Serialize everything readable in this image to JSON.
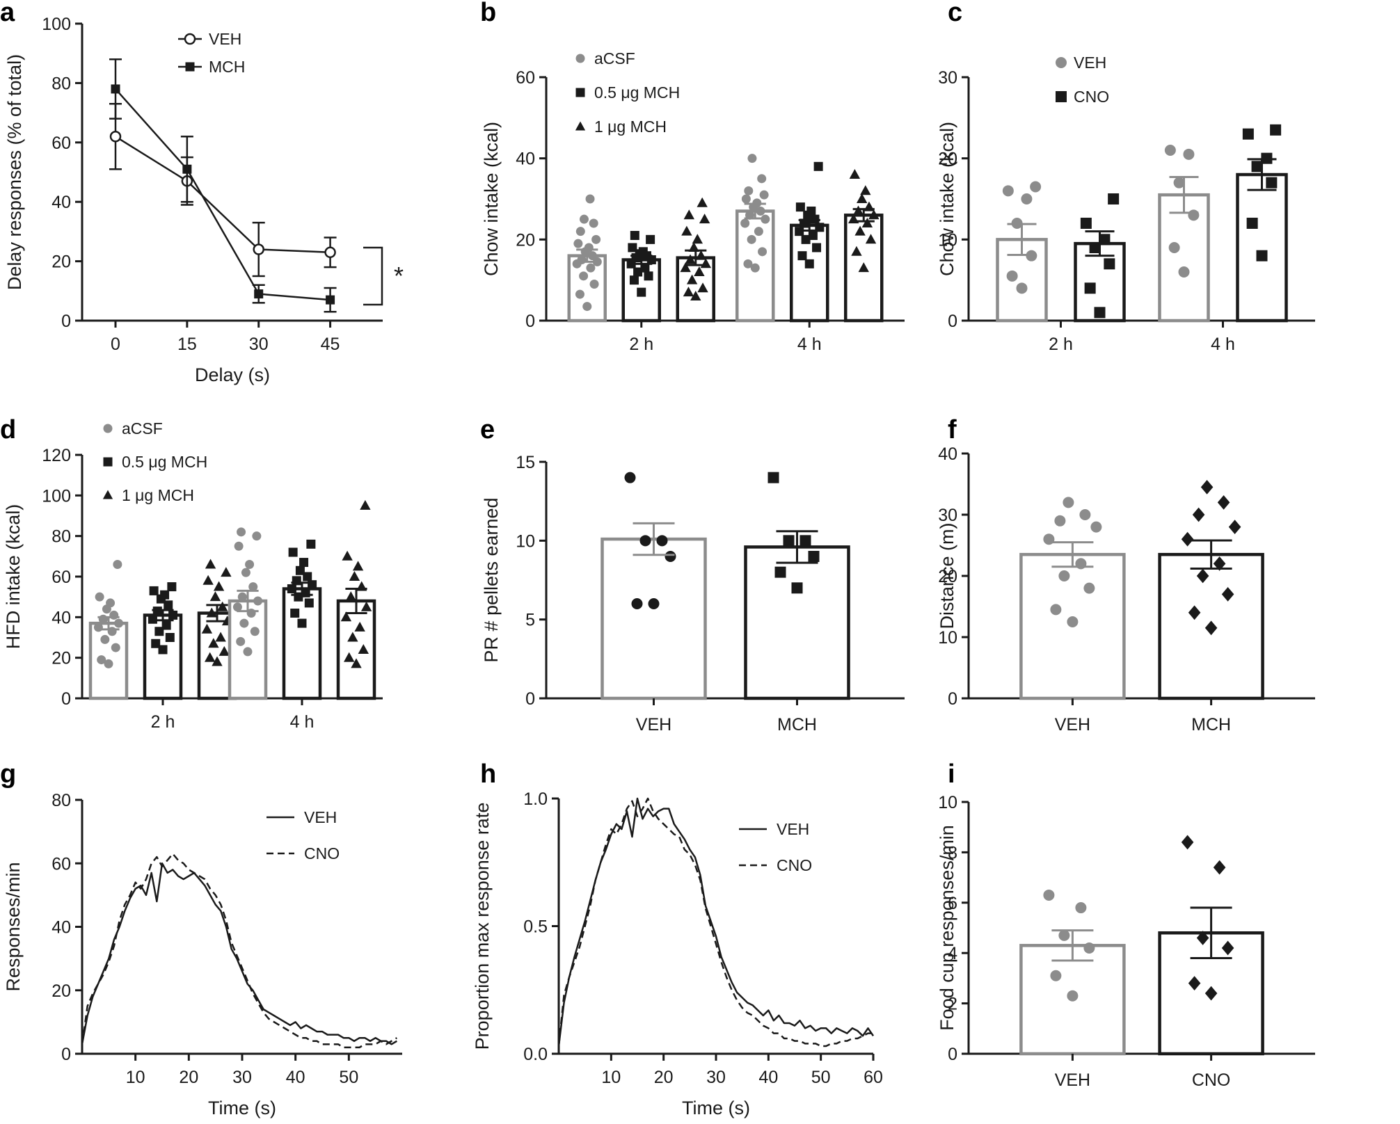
{
  "colors": {
    "grey": "#8c8c8c",
    "black": "#1a1a1a",
    "white": "#ffffff"
  },
  "chart_data": [
    {
      "panel": "a",
      "type": "line",
      "xlabel": "Delay (s)",
      "ylabel": "Delay responses (% of total)",
      "x": [
        0,
        15,
        30,
        45
      ],
      "xticks": [
        "0",
        "15",
        "30",
        "45"
      ],
      "ylim": [
        0,
        100
      ],
      "yticks": [
        "0",
        "20",
        "40",
        "60",
        "80",
        "100"
      ],
      "series": [
        {
          "name": "VEH",
          "values": [
            62,
            47,
            24,
            23
          ],
          "sem": [
            11,
            8,
            9,
            5
          ],
          "marker": "open-circle"
        },
        {
          "name": "MCH",
          "values": [
            78,
            51,
            9,
            7
          ],
          "sem": [
            10,
            11,
            3,
            4
          ],
          "marker": "square"
        }
      ],
      "annotation": "*"
    },
    {
      "panel": "b",
      "type": "bar",
      "ylabel": "Chow intake (kcal)",
      "categories": [
        "2 h",
        "4 h"
      ],
      "ylim": [
        0,
        60
      ],
      "yticks": [
        "0",
        "20",
        "40",
        "60"
      ],
      "series": [
        {
          "name": "aCSF",
          "marker": "circle",
          "color": "grey",
          "values": [
            16,
            27
          ],
          "sem": [
            1.5,
            1.8
          ],
          "points": [
            [
              3.5,
              6.5,
              9,
              11,
              13,
              14,
              14.5,
              15,
              16,
              17,
              18,
              19,
              20,
              22,
              24,
              25,
              30
            ],
            [
              13,
              14,
              17,
              20,
              22,
              24,
              25,
              26,
              27,
              28,
              29,
              30,
              31,
              32,
              35,
              40
            ]
          ]
        },
        {
          "name": "0.5 μg MCH",
          "marker": "square",
          "color": "black",
          "values": [
            15,
            23.5
          ],
          "sem": [
            1.0,
            1.3
          ],
          "points": [
            [
              7,
              10,
              11,
              12,
              13,
              14,
              15,
              15.5,
              16,
              16.5,
              17,
              18,
              20,
              21
            ],
            [
              14,
              16,
              18,
              20,
              21,
              22,
              23,
              24,
              25,
              26,
              27,
              28,
              38
            ]
          ]
        },
        {
          "name": "1 μg MCH",
          "marker": "triangle",
          "color": "black",
          "values": [
            15.5,
            26
          ],
          "sem": [
            1.8,
            1.5
          ],
          "points": [
            [
              6,
              7,
              8,
              10,
              12,
              13,
              14,
              15,
              16,
              18,
              20,
              22,
              25,
              26,
              29
            ],
            [
              13,
              17,
              20,
              22,
              24,
              25,
              26,
              27,
              28,
              30,
              32,
              36
            ]
          ]
        }
      ]
    },
    {
      "panel": "c",
      "type": "bar",
      "ylabel": "Chow intake (kcal)",
      "categories": [
        "2 h",
        "4 h"
      ],
      "ylim": [
        0,
        30
      ],
      "yticks": [
        "0",
        "10",
        "20",
        "30"
      ],
      "series": [
        {
          "name": "VEH",
          "marker": "circle",
          "color": "grey",
          "values": [
            10,
            15.5
          ],
          "sem": [
            1.9,
            2.2
          ],
          "points": [
            [
              4,
              5.5,
              8,
              12,
              15,
              16,
              16.5
            ],
            [
              6,
              9,
              13,
              17,
              20.5,
              21
            ]
          ]
        },
        {
          "name": "CNO",
          "marker": "square",
          "color": "black",
          "values": [
            9.5,
            18
          ],
          "sem": [
            1.5,
            1.9
          ],
          "points": [
            [
              1,
              4,
              7,
              9,
              10,
              12,
              15
            ],
            [
              8,
              12,
              17,
              19,
              20,
              23,
              23.5
            ]
          ]
        }
      ]
    },
    {
      "panel": "d",
      "type": "bar",
      "ylabel": "HFD intake (kcal)",
      "categories": [
        "2 h",
        "4 h"
      ],
      "ylim": [
        0,
        120
      ],
      "yticks": [
        "0",
        "20",
        "40",
        "60",
        "80",
        "100",
        "120"
      ],
      "series": [
        {
          "name": "aCSF",
          "marker": "circle",
          "color": "grey",
          "values": [
            37,
            48
          ],
          "sem": [
            3,
            5
          ],
          "points": [
            [
              17,
              19,
              25,
              29,
              33,
              35,
              37,
              39,
              41,
              44,
              47,
              50,
              66
            ],
            [
              23,
              28,
              33,
              37,
              42,
              45,
              48,
              50,
              55,
              62,
              66,
              75,
              80,
              82
            ]
          ]
        },
        {
          "name": "0.5 μg MCH",
          "marker": "square",
          "color": "black",
          "values": [
            41,
            54
          ],
          "sem": [
            2.5,
            3
          ],
          "points": [
            [
              24,
              27,
              30,
              33,
              36,
              39,
              41,
              43,
              46,
              49,
              51,
              53,
              55
            ],
            [
              37,
              42,
              47,
              50,
              52,
              54,
              56,
              58,
              60,
              63,
              67,
              72,
              76
            ]
          ]
        },
        {
          "name": "1 μg MCH",
          "marker": "triangle",
          "color": "black",
          "values": [
            42,
            48
          ],
          "sem": [
            4,
            6
          ],
          "points": [
            [
              18,
              20,
              23,
              27,
              30,
              34,
              38,
              42,
              45,
              50,
              55,
              58,
              62,
              66
            ],
            [
              17,
              20,
              24,
              30,
              35,
              40,
              45,
              50,
              55,
              60,
              65,
              70,
              95
            ]
          ]
        }
      ]
    },
    {
      "panel": "e",
      "type": "bar",
      "ylabel": "PR # pellets earned",
      "categories": [
        "VEH",
        "MCH"
      ],
      "ylim": [
        0,
        15
      ],
      "yticks": [
        "0",
        "5",
        "10",
        "15"
      ],
      "bars": [
        {
          "name": "VEH",
          "marker": "circle",
          "value": 10.1,
          "sem": 1.0,
          "points": [
            6,
            6,
            9,
            10,
            10,
            14
          ]
        },
        {
          "name": "MCH",
          "marker": "square",
          "value": 9.6,
          "sem": 1.0,
          "points": [
            7,
            8,
            9,
            10,
            10,
            14
          ]
        }
      ]
    },
    {
      "panel": "f",
      "type": "bar",
      "ylabel": "Distance (m)",
      "categories": [
        "VEH",
        "MCH"
      ],
      "ylim": [
        0,
        40
      ],
      "yticks": [
        "0",
        "10",
        "20",
        "30",
        "40"
      ],
      "bars": [
        {
          "name": "VEH",
          "marker": "circle",
          "value": 23.5,
          "sem": 2.0,
          "points": [
            12.5,
            14.5,
            18,
            20,
            22,
            26,
            28,
            29,
            30,
            32
          ]
        },
        {
          "name": "MCH",
          "marker": "diamond",
          "value": 23.5,
          "sem": 2.3,
          "points": [
            11.5,
            14,
            17,
            20,
            22,
            26,
            28,
            30,
            32,
            34.5
          ]
        }
      ]
    },
    {
      "panel": "g",
      "type": "line",
      "xlabel": "Time (s)",
      "ylabel": "Responses/min",
      "xlim": [
        0,
        60
      ],
      "xticks": [
        "10",
        "20",
        "30",
        "40",
        "50"
      ],
      "ylim": [
        0,
        80
      ],
      "yticks": [
        "0",
        "20",
        "40",
        "60",
        "80"
      ],
      "x": [
        0,
        1,
        2,
        3,
        4,
        5,
        6,
        7,
        8,
        9,
        10,
        11,
        12,
        13,
        14,
        15,
        16,
        17,
        18,
        19,
        20,
        21,
        22,
        23,
        24,
        25,
        26,
        27,
        28,
        29,
        30,
        31,
        32,
        33,
        34,
        35,
        36,
        37,
        38,
        39,
        40,
        41,
        42,
        43,
        44,
        45,
        46,
        47,
        48,
        49,
        50,
        51,
        52,
        53,
        54,
        55,
        56,
        57,
        58,
        59
      ],
      "series": [
        {
          "name": "VEH",
          "style": "solid",
          "values": [
            3,
            12,
            18,
            22,
            26,
            30,
            36,
            40,
            45,
            49,
            52,
            53,
            50,
            57,
            48,
            60,
            57,
            58,
            56,
            55,
            56,
            57,
            55,
            53,
            50,
            47,
            45,
            40,
            33,
            30,
            26,
            22,
            20,
            17,
            14,
            13,
            12,
            11,
            10,
            9,
            10,
            8,
            9,
            8,
            7,
            7,
            6,
            6,
            6,
            5,
            5,
            4,
            5,
            5,
            4,
            5,
            4,
            4,
            3,
            4
          ]
        },
        {
          "name": "CNO",
          "style": "dashed",
          "values": [
            3,
            15,
            19,
            22,
            25,
            29,
            34,
            42,
            47,
            50,
            54,
            52,
            55,
            60,
            62,
            59,
            61,
            63,
            61,
            60,
            58,
            57,
            56,
            55,
            52,
            50,
            47,
            42,
            35,
            31,
            27,
            23,
            19,
            16,
            13,
            11,
            10,
            9,
            8,
            7,
            6,
            5,
            5,
            4,
            4,
            3,
            3,
            3,
            3,
            2,
            2,
            2,
            2,
            3,
            3,
            3,
            4,
            3,
            4,
            5
          ]
        }
      ]
    },
    {
      "panel": "h",
      "type": "line",
      "xlabel": "Time (s)",
      "ylabel": "Proportion max response rate",
      "xlim": [
        0,
        60
      ],
      "xticks": [
        "10",
        "20",
        "30",
        "40",
        "50",
        "60"
      ],
      "ylim": [
        0,
        1
      ],
      "yticks": [
        "0.0",
        "0.5",
        "1.0"
      ],
      "x": [
        0,
        1,
        2,
        3,
        4,
        5,
        6,
        7,
        8,
        9,
        10,
        11,
        12,
        13,
        14,
        15,
        16,
        17,
        18,
        19,
        20,
        21,
        22,
        23,
        24,
        25,
        26,
        27,
        28,
        29,
        30,
        31,
        32,
        33,
        34,
        35,
        36,
        37,
        38,
        39,
        40,
        41,
        42,
        43,
        44,
        45,
        46,
        47,
        48,
        49,
        50,
        51,
        52,
        53,
        54,
        55,
        56,
        57,
        58,
        59,
        60
      ],
      "series": [
        {
          "name": "VEH",
          "style": "solid",
          "values": [
            0.03,
            0.2,
            0.3,
            0.38,
            0.45,
            0.52,
            0.6,
            0.68,
            0.75,
            0.8,
            0.86,
            0.9,
            0.88,
            0.95,
            0.85,
            1.0,
            0.92,
            0.96,
            0.93,
            0.95,
            0.96,
            0.96,
            0.9,
            0.87,
            0.84,
            0.8,
            0.77,
            0.7,
            0.58,
            0.52,
            0.46,
            0.38,
            0.33,
            0.28,
            0.24,
            0.22,
            0.2,
            0.19,
            0.17,
            0.15,
            0.17,
            0.13,
            0.15,
            0.12,
            0.12,
            0.11,
            0.13,
            0.1,
            0.11,
            0.09,
            0.1,
            0.1,
            0.08,
            0.1,
            0.09,
            0.08,
            0.1,
            0.09,
            0.07,
            0.1,
            0.07
          ]
        },
        {
          "name": "CNO",
          "style": "dashed",
          "values": [
            0.03,
            0.23,
            0.3,
            0.36,
            0.42,
            0.5,
            0.58,
            0.68,
            0.75,
            0.82,
            0.88,
            0.86,
            0.9,
            0.96,
            0.99,
            0.93,
            0.96,
            1.0,
            0.95,
            0.92,
            0.9,
            0.88,
            0.86,
            0.85,
            0.8,
            0.78,
            0.74,
            0.68,
            0.57,
            0.5,
            0.43,
            0.36,
            0.3,
            0.25,
            0.21,
            0.18,
            0.16,
            0.15,
            0.13,
            0.11,
            0.1,
            0.08,
            0.08,
            0.06,
            0.06,
            0.05,
            0.05,
            0.04,
            0.04,
            0.04,
            0.03,
            0.03,
            0.04,
            0.04,
            0.05,
            0.05,
            0.06,
            0.06,
            0.07,
            0.08,
            0.08
          ]
        }
      ]
    },
    {
      "panel": "i",
      "type": "bar",
      "ylabel": "Food cup responses/min",
      "categories": [
        "VEH",
        "CNO"
      ],
      "ylim": [
        0,
        10
      ],
      "yticks": [
        "0",
        "2",
        "4",
        "6",
        "8",
        "10"
      ],
      "bars": [
        {
          "name": "VEH",
          "marker": "circle",
          "color": "grey",
          "value": 4.3,
          "sem": 0.6,
          "points": [
            2.3,
            3.1,
            4.2,
            4.7,
            5.8,
            6.3
          ]
        },
        {
          "name": "CNO",
          "marker": "diamond",
          "color": "black",
          "value": 4.8,
          "sem": 1.0,
          "points": [
            2.4,
            2.8,
            4.2,
            4.6,
            7.4,
            8.4
          ]
        }
      ]
    }
  ]
}
